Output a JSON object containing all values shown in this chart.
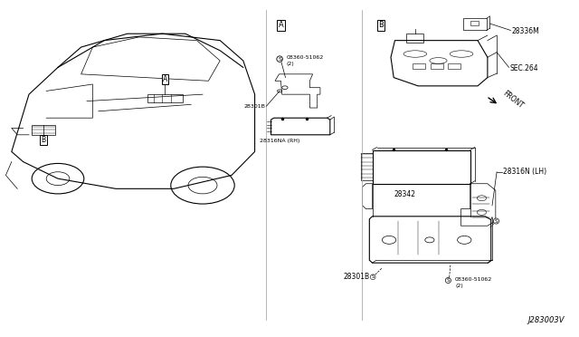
{
  "bg_color": "#ffffff",
  "line_color": "#000000",
  "fig_width": 6.4,
  "fig_height": 3.72,
  "diagram_id": "J283003V",
  "annotations": {
    "28336M": "28336M",
    "SEC264": "SEC.264",
    "28316NA_RH": "28316NA (RH)",
    "28316N_LH": "28316N (LH)",
    "28342": "28342",
    "28301B": "28301B",
    "08360": "08360-51062",
    "two": "(2)",
    "FRONT": "FRONT",
    "J283003V": "J283003V"
  }
}
